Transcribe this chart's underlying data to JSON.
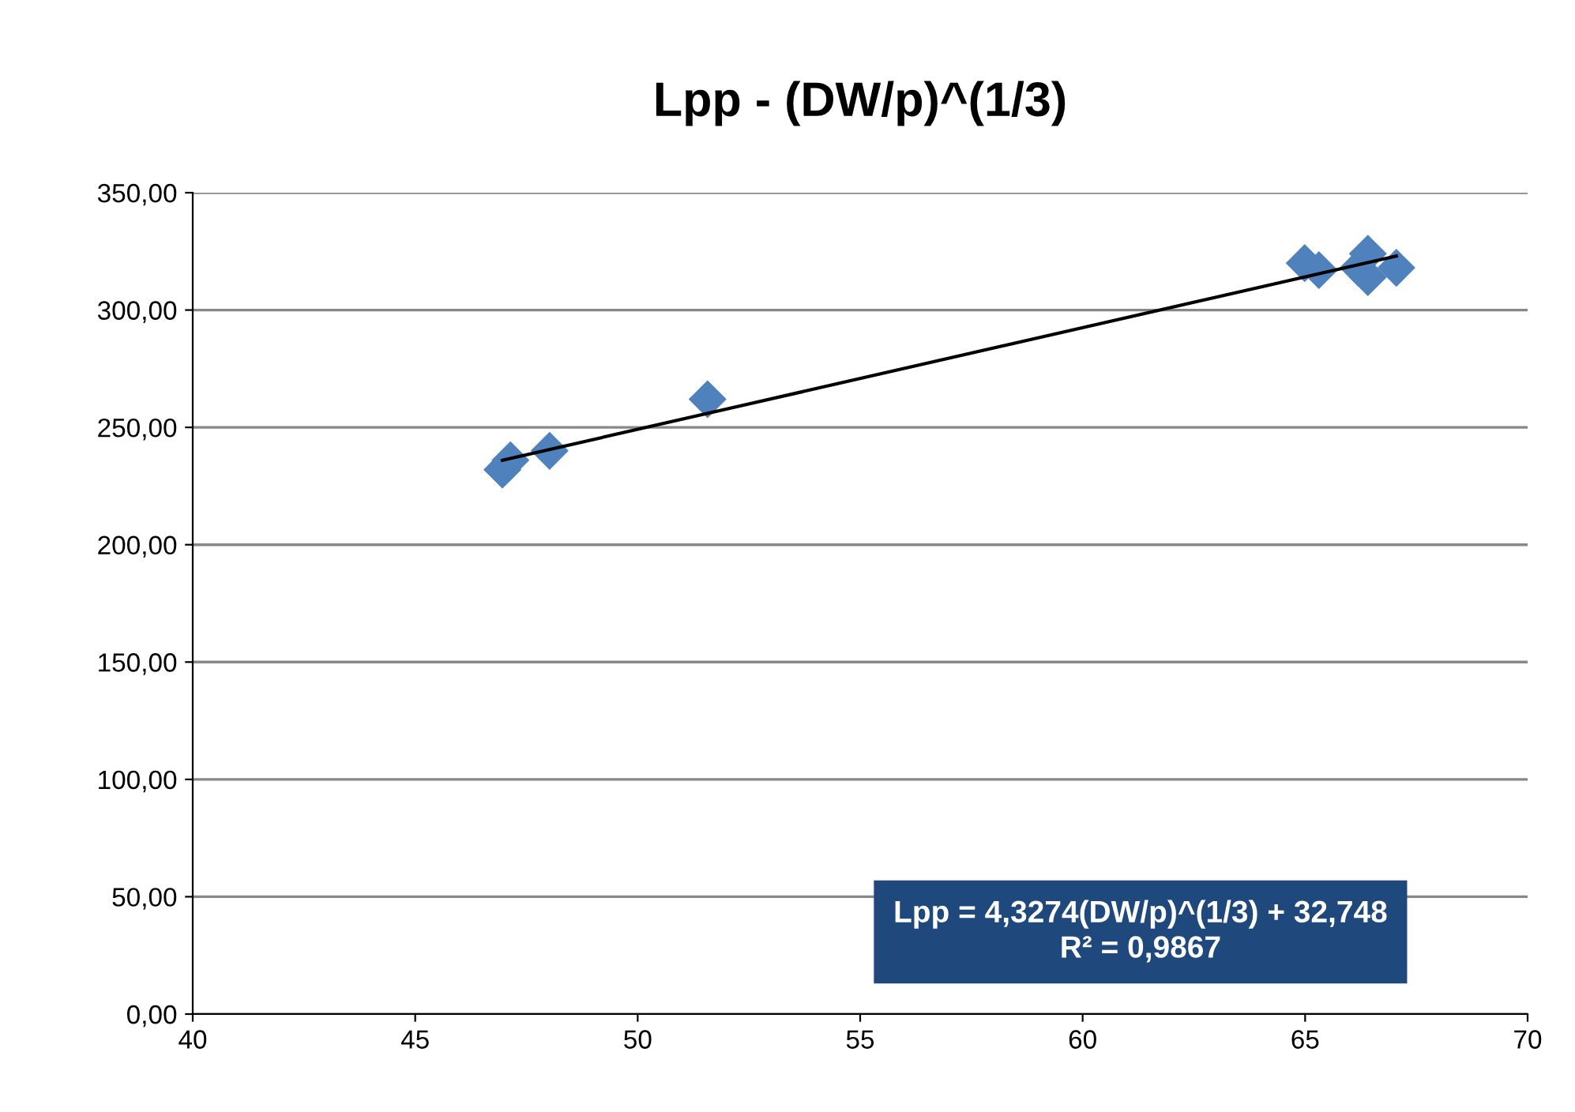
{
  "chart_data": {
    "type": "scatter",
    "title": "Lpp - (DW/p)^(1/3)",
    "xlim": [
      40,
      70
    ],
    "xticks": [
      40,
      45,
      50,
      55,
      60,
      65,
      70
    ],
    "ylim": [
      0,
      350
    ],
    "yticks": [
      {
        "value": 0,
        "label": "0,00"
      },
      {
        "value": 50,
        "label": "50,00"
      },
      {
        "value": 100,
        "label": "100,00"
      },
      {
        "value": 150,
        "label": "150,00"
      },
      {
        "value": 200,
        "label": "200,00"
      },
      {
        "value": 250,
        "label": "250,00"
      },
      {
        "value": 300,
        "label": "300,00"
      },
      {
        "value": 350,
        "label": "350,00"
      }
    ],
    "grid": "y",
    "marker": "diamond",
    "legend": false,
    "series": [
      {
        "color": "#4f81bd",
        "x": [
          46.96,
          47.14,
          48.02,
          51.57,
          64.99,
          65.31,
          66.41,
          66.41,
          67.05,
          66.2
        ],
        "values": [
          232,
          236,
          240,
          262,
          320,
          317,
          324,
          314,
          318,
          318
        ]
      },
      {
        "type": "line",
        "marker": "none",
        "color": "#000000",
        "x": [
          46.96,
          67.05
        ],
        "values": [
          236,
          323
        ]
      }
    ],
    "annotations": [
      "Lpp = 4,3274(DW/p)^(1/3) + 32,748\nR² = 0,9867"
    ]
  }
}
